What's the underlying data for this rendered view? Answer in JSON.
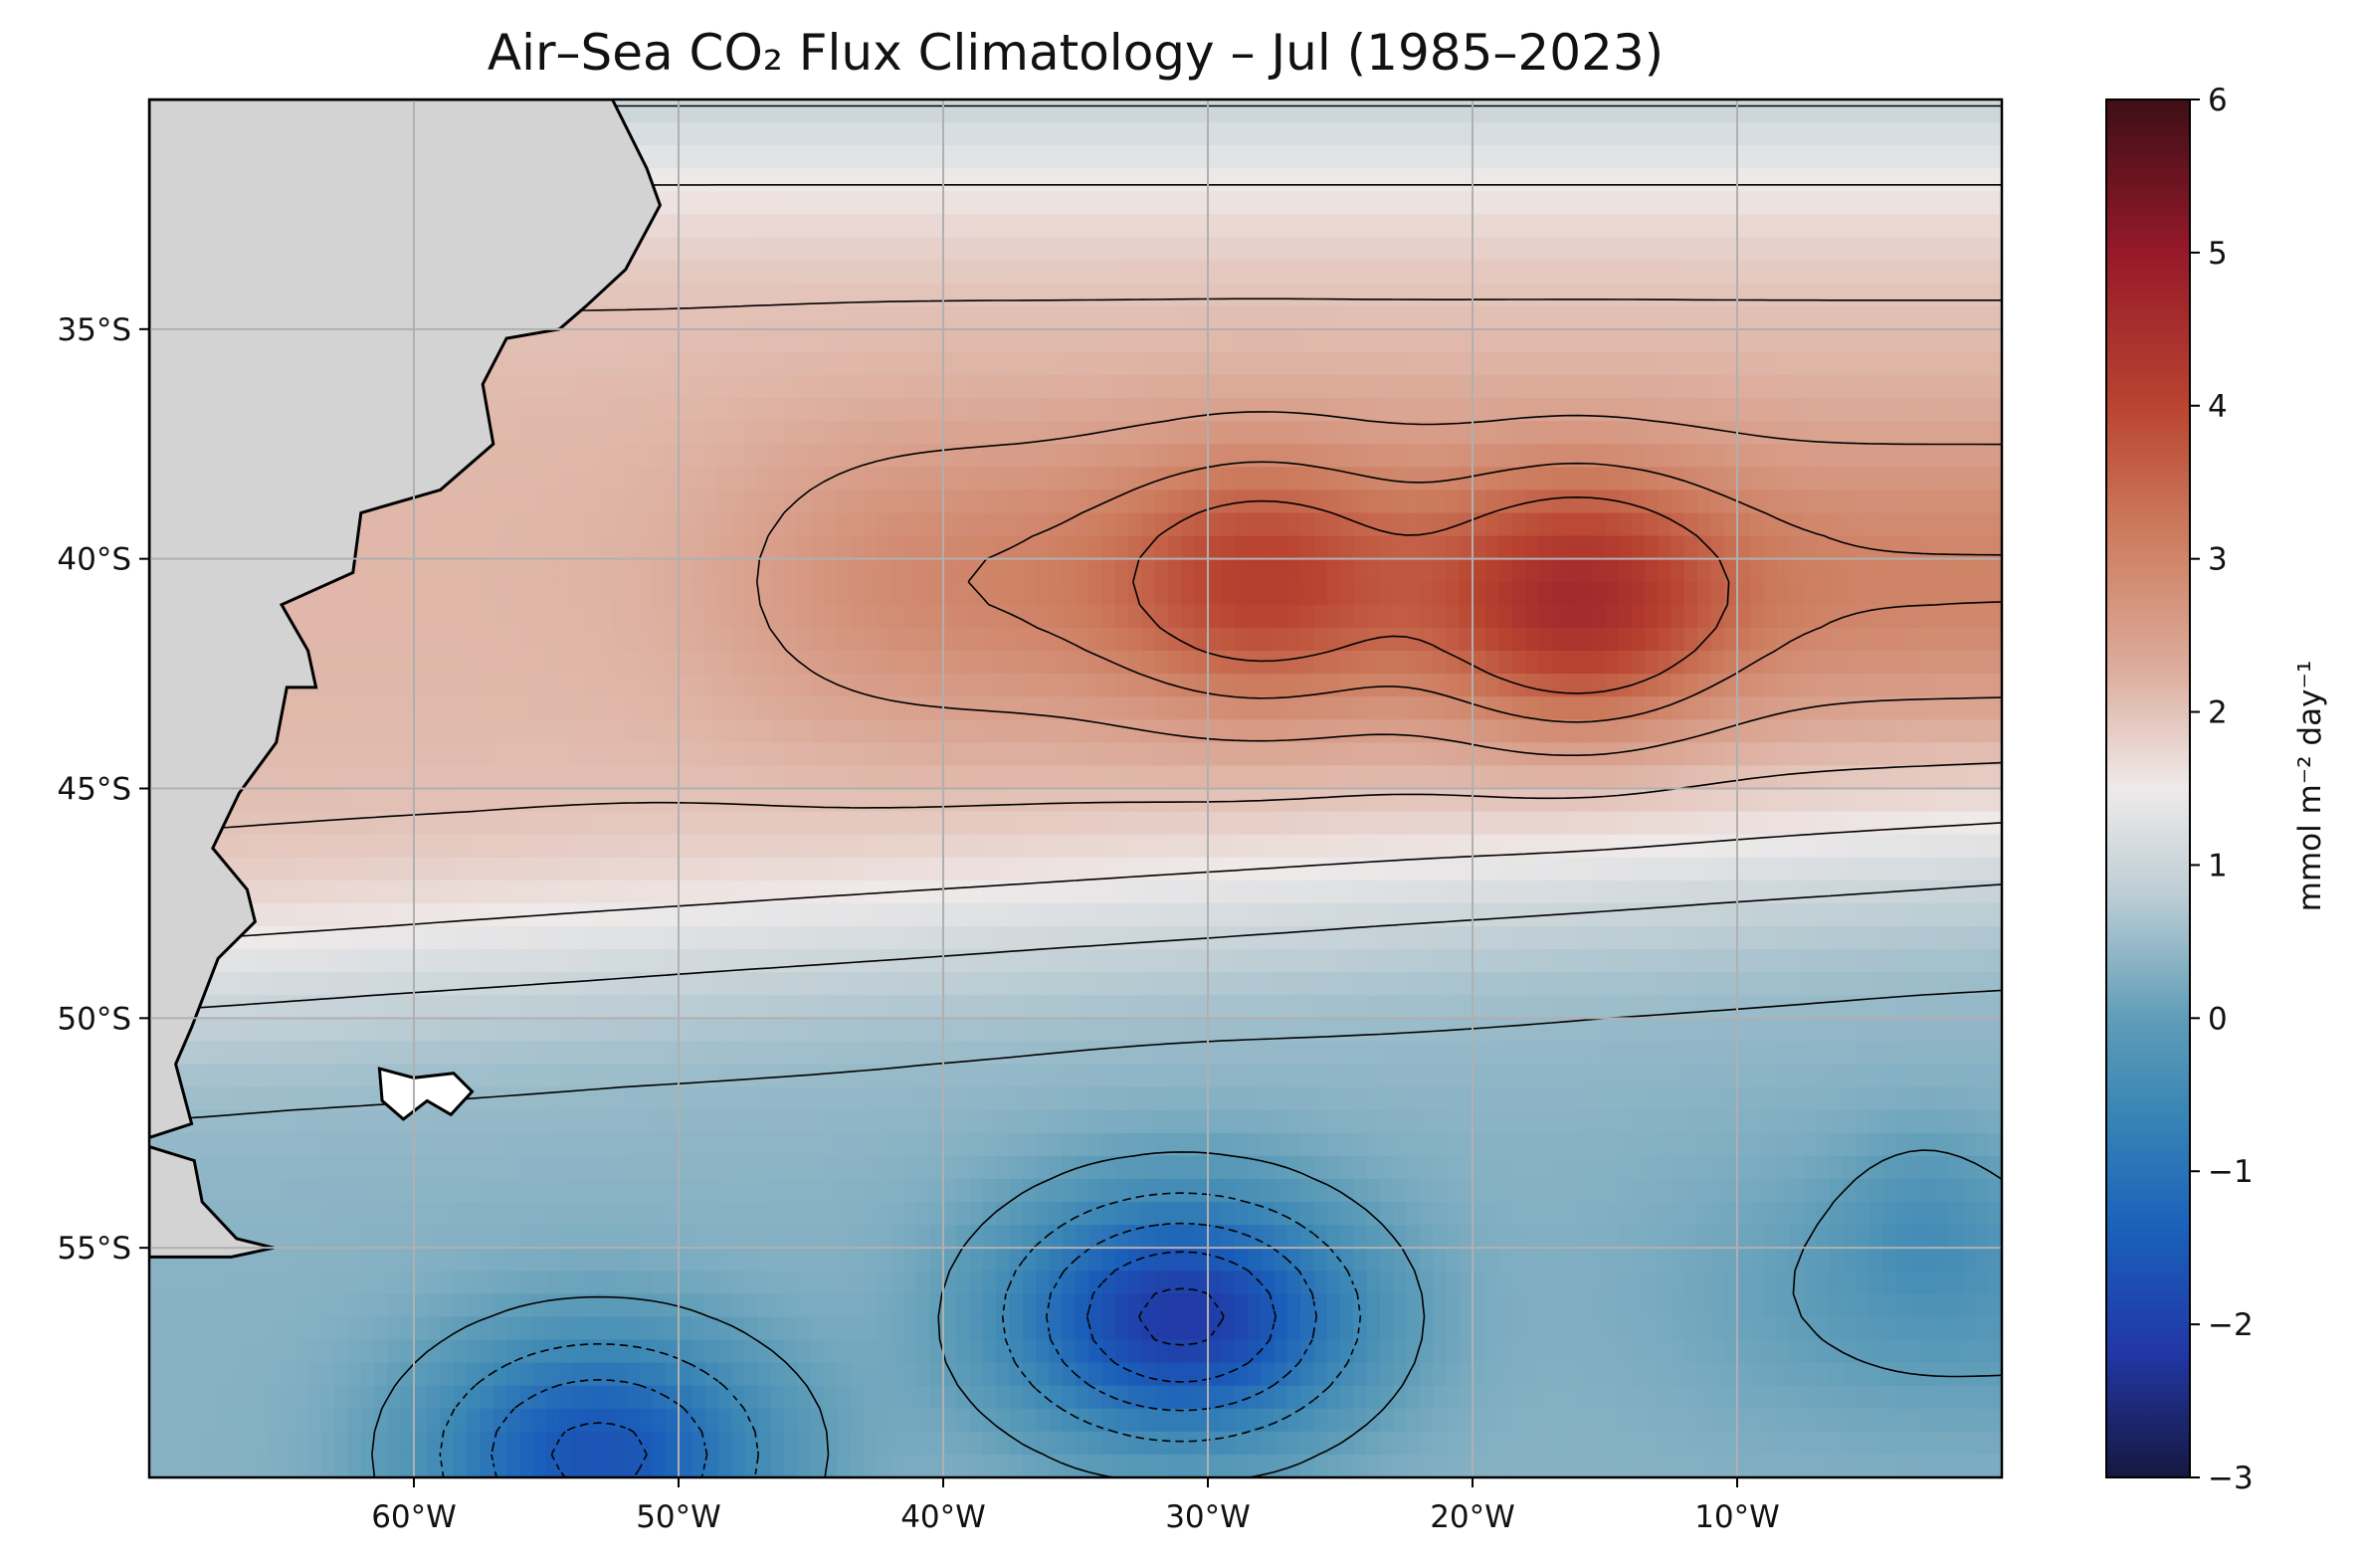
{
  "title": "Air–Sea CO₂ Flux Climatology – Jul (1985–2023)",
  "chart_data": {
    "type": "heatmap",
    "title": "Air–Sea CO₂ Flux Climatology – Jul (1985–2023)",
    "xlabel": "",
    "ylabel": "",
    "lon_range": [
      -70,
      0
    ],
    "lat_range": [
      -60,
      -30
    ],
    "x_ticks": [
      {
        "value": -60,
        "label": "60°W"
      },
      {
        "value": -50,
        "label": "50°W"
      },
      {
        "value": -40,
        "label": "40°W"
      },
      {
        "value": -30,
        "label": "30°W"
      },
      {
        "value": -20,
        "label": "20°W"
      },
      {
        "value": -10,
        "label": "10°W"
      }
    ],
    "y_ticks": [
      {
        "value": -35,
        "label": "35°S"
      },
      {
        "value": -40,
        "label": "40°S"
      },
      {
        "value": -45,
        "label": "45°S"
      },
      {
        "value": -50,
        "label": "50°S"
      },
      {
        "value": -55,
        "label": "55°S"
      }
    ],
    "grid": true,
    "land_color": "#d3d3d3",
    "colorbar": {
      "label": "mmol m⁻² day⁻¹",
      "range": [
        -3,
        6
      ],
      "ticks": [
        {
          "value": 6,
          "label": "6"
        },
        {
          "value": 5,
          "label": "5"
        },
        {
          "value": 4,
          "label": "4"
        },
        {
          "value": 3,
          "label": "3"
        },
        {
          "value": 2,
          "label": "2"
        },
        {
          "value": 1,
          "label": "1"
        },
        {
          "value": 0,
          "label": "0"
        },
        {
          "value": -1,
          "label": "−1"
        },
        {
          "value": -2,
          "label": "−2"
        },
        {
          "value": -3,
          "label": "−3"
        }
      ],
      "colormap": [
        {
          "value": -3,
          "color": "#16183f"
        },
        {
          "value": -2.2,
          "color": "#2236a4"
        },
        {
          "value": -1.4,
          "color": "#1a5fba"
        },
        {
          "value": -0.6,
          "color": "#3a86b5"
        },
        {
          "value": 0,
          "color": "#5f9db8"
        },
        {
          "value": 0.8,
          "color": "#bccdd4"
        },
        {
          "value": 1.5,
          "color": "#efeaea"
        },
        {
          "value": 2.3,
          "color": "#dcab9a"
        },
        {
          "value": 3.2,
          "color": "#cc7a5c"
        },
        {
          "value": 4,
          "color": "#b94430"
        },
        {
          "value": 5,
          "color": "#96192a"
        },
        {
          "value": 6,
          "color": "#3d0f16"
        }
      ]
    },
    "field_description": {
      "positive_band_lat": [
        -48,
        -31
      ],
      "maxima": [
        {
          "lon": -16,
          "lat": -41,
          "value": 3.8
        },
        {
          "lon": -28,
          "lat": -40.5,
          "value": 3.3
        }
      ],
      "minima": [
        {
          "lon": -31,
          "lat": -56.5,
          "value": -2.3
        },
        {
          "lon": -53,
          "lat": -59.5,
          "value": -1.8
        }
      ]
    }
  }
}
